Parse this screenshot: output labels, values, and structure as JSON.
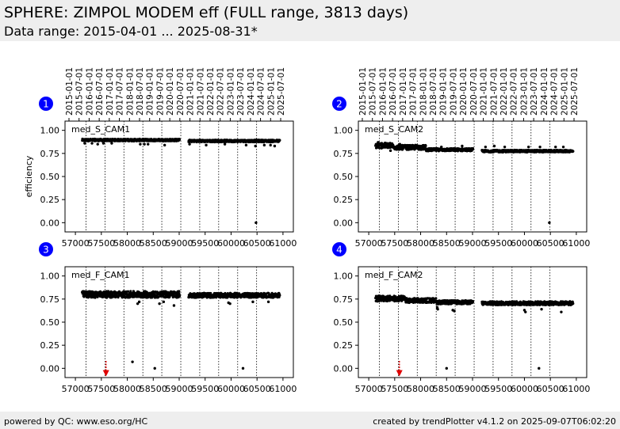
{
  "header": {
    "title": "SPHERE: ZIMPOL MODEM eff (FULL range, 3813 days)",
    "subtitle": "Data range: 2015-04-01 ... 2025-08-31*"
  },
  "footer": {
    "left": "powered by QC: www.eso.org/HC",
    "right": "created by trendPlotter v4.1.2 on 2025-09-07T06:02:20"
  },
  "colors": {
    "background_band": "#eeeeee",
    "marker": "#000000",
    "badge": "#0000ff",
    "arrow": "#e00000"
  },
  "chart_data": [
    {
      "type": "scatter",
      "panel_number": "1",
      "label": "med_S_CAM1",
      "ylabel": "efficiency",
      "xlim": [
        56800,
        61200
      ],
      "ylim": [
        -0.1,
        1.1
      ],
      "xticks": [
        57000,
        57500,
        58000,
        58500,
        59000,
        59500,
        60000,
        60500,
        61000
      ],
      "yticks": [
        "0.00",
        "0.25",
        "0.50",
        "0.75",
        "1.00"
      ],
      "top_date_ticks": [
        "2015-01-01",
        "2015-07-01",
        "2016-01-01",
        "2016-07-01",
        "2017-01-01",
        "2017-07-01",
        "2018-01-01",
        "2018-07-01",
        "2019-01-01",
        "2019-07-01",
        "2020-01-01",
        "2020-07-01",
        "2021-01-01",
        "2021-07-01",
        "2022-01-01",
        "2022-07-01",
        "2023-01-01",
        "2023-07-01",
        "2024-01-01",
        "2024-07-01",
        "2025-01-01",
        "2025-07-01"
      ],
      "vlines_mjd": [
        57204,
        57570,
        57935,
        58300,
        58665,
        59031,
        59396,
        59761,
        60127,
        60492
      ],
      "segments": [
        {
          "x0": 57130,
          "x1": 59010,
          "y": 0.895,
          "spread": 0.012
        },
        {
          "x0": 59180,
          "x1": 60940,
          "y": 0.885,
          "spread": 0.012
        }
      ],
      "outliers": [
        [
          57180,
          0.86
        ],
        [
          57320,
          0.86
        ],
        [
          57430,
          0.85
        ],
        [
          57540,
          0.86
        ],
        [
          57700,
          0.86
        ],
        [
          58250,
          0.85
        ],
        [
          58330,
          0.85
        ],
        [
          58400,
          0.85
        ],
        [
          58720,
          0.84
        ],
        [
          59200,
          0.85
        ],
        [
          59520,
          0.84
        ],
        [
          59880,
          0.85
        ],
        [
          60290,
          0.84
        ],
        [
          60470,
          0.83
        ],
        [
          60640,
          0.84
        ],
        [
          60760,
          0.84
        ],
        [
          60840,
          0.83
        ],
        [
          60480,
          0.0
        ]
      ],
      "markers": []
    },
    {
      "type": "scatter",
      "panel_number": "2",
      "label": "med_S_CAM2",
      "ylabel": "",
      "xlim": [
        56800,
        61200
      ],
      "ylim": [
        -0.1,
        1.1
      ],
      "xticks": [
        57000,
        57500,
        58000,
        58500,
        59000,
        59500,
        60000,
        60500,
        61000
      ],
      "yticks": [
        "0.00",
        "0.25",
        "0.50",
        "0.75",
        "1.00"
      ],
      "top_date_ticks": [
        "2015-01-01",
        "2015-07-01",
        "2016-01-01",
        "2016-07-01",
        "2017-01-01",
        "2017-07-01",
        "2018-01-01",
        "2018-07-01",
        "2019-01-01",
        "2019-07-01",
        "2020-01-01",
        "2020-07-01",
        "2021-01-01",
        "2021-07-01",
        "2022-01-01",
        "2022-07-01",
        "2023-01-01",
        "2023-07-01",
        "2024-01-01",
        "2024-07-01",
        "2025-01-01",
        "2025-07-01"
      ],
      "vlines_mjd": [
        57204,
        57570,
        57935,
        58300,
        58665,
        59031,
        59396,
        59761,
        60127,
        60492
      ],
      "segments": [
        {
          "x0": 57130,
          "x1": 57500,
          "y": 0.835,
          "spread": 0.03
        },
        {
          "x0": 57500,
          "x1": 58100,
          "y": 0.815,
          "spread": 0.025
        },
        {
          "x0": 58100,
          "x1": 59010,
          "y": 0.79,
          "spread": 0.015
        },
        {
          "x0": 59180,
          "x1": 60940,
          "y": 0.775,
          "spread": 0.012
        }
      ],
      "outliers": [
        [
          57180,
          0.87
        ],
        [
          57250,
          0.86
        ],
        [
          57420,
          0.78
        ],
        [
          57600,
          0.85
        ],
        [
          57900,
          0.84
        ],
        [
          58400,
          0.82
        ],
        [
          58800,
          0.83
        ],
        [
          59250,
          0.82
        ],
        [
          59420,
          0.83
        ],
        [
          59620,
          0.82
        ],
        [
          60080,
          0.82
        ],
        [
          60300,
          0.82
        ],
        [
          60600,
          0.82
        ],
        [
          60750,
          0.82
        ],
        [
          60480,
          0.0
        ]
      ],
      "markers": []
    },
    {
      "type": "scatter",
      "panel_number": "3",
      "label": "med_F_CAM1",
      "ylabel": "",
      "xlim": [
        56800,
        61200
      ],
      "ylim": [
        -0.1,
        1.1
      ],
      "xticks": [
        57000,
        57500,
        58000,
        58500,
        59000,
        59500,
        60000,
        60500,
        61000
      ],
      "xtick_labels_only": true,
      "yticks": [
        "0.00",
        "0.25",
        "0.50",
        "0.75",
        "1.00"
      ],
      "vlines_mjd": [
        57204,
        57570,
        57935,
        58300,
        58665,
        59031,
        59396,
        59761,
        60127,
        60492
      ],
      "segments": [
        {
          "x0": 57130,
          "x1": 59010,
          "y": 0.8,
          "spread": 0.035
        },
        {
          "x0": 59180,
          "x1": 60940,
          "y": 0.79,
          "spread": 0.025
        }
      ],
      "outliers": [
        [
          58200,
          0.7
        ],
        [
          58230,
          0.72
        ],
        [
          58620,
          0.7
        ],
        [
          58700,
          0.72
        ],
        [
          58900,
          0.68
        ],
        [
          59950,
          0.71
        ],
        [
          59980,
          0.7
        ],
        [
          60420,
          0.72
        ],
        [
          60720,
          0.72
        ],
        [
          58100,
          0.07
        ],
        [
          58530,
          0.0
        ],
        [
          60230,
          0.0
        ]
      ],
      "markers": [
        {
          "x": 57590,
          "y_from": 0.08,
          "y_to": -0.08
        }
      ]
    },
    {
      "type": "scatter",
      "panel_number": "4",
      "label": "med_F_CAM2",
      "ylabel": "",
      "xlim": [
        56800,
        61200
      ],
      "ylim": [
        -0.1,
        1.1
      ],
      "xticks": [
        57000,
        57500,
        58000,
        58500,
        59000,
        59500,
        60000,
        60500,
        61000
      ],
      "yticks": [
        "0.00",
        "0.25",
        "0.50",
        "0.75",
        "1.00"
      ],
      "vlines_mjd": [
        57204,
        57570,
        57935,
        58300,
        58665,
        59031,
        59396,
        59761,
        60127,
        60492
      ],
      "segments": [
        {
          "x0": 57130,
          "x1": 57700,
          "y": 0.755,
          "spread": 0.03
        },
        {
          "x0": 57700,
          "x1": 58300,
          "y": 0.735,
          "spread": 0.025
        },
        {
          "x0": 58300,
          "x1": 59010,
          "y": 0.715,
          "spread": 0.02
        },
        {
          "x0": 59180,
          "x1": 60940,
          "y": 0.705,
          "spread": 0.02
        }
      ],
      "outliers": [
        [
          58320,
          0.66
        ],
        [
          58330,
          0.64
        ],
        [
          58620,
          0.63
        ],
        [
          58650,
          0.62
        ],
        [
          60000,
          0.63
        ],
        [
          60020,
          0.61
        ],
        [
          60330,
          0.64
        ],
        [
          60710,
          0.61
        ],
        [
          58500,
          0.0
        ],
        [
          60280,
          0.0
        ]
      ],
      "markers": [
        {
          "x": 57590,
          "y_from": 0.08,
          "y_to": -0.08
        }
      ]
    }
  ]
}
